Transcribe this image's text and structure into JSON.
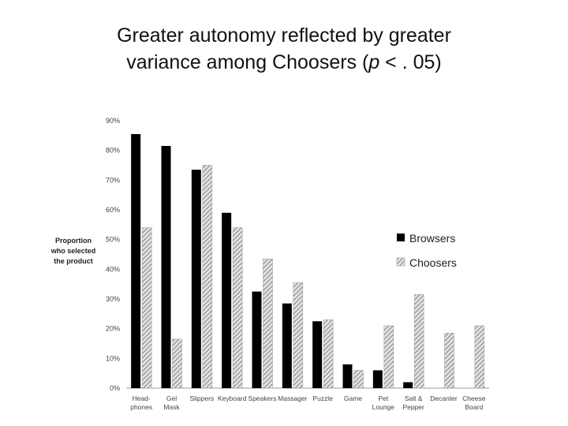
{
  "title": {
    "line1": "Greater autonomy reflected by greater",
    "line2_prefix": "variance among Choosers (",
    "line2_p": "p",
    "line2_suffix": " < . 05)"
  },
  "colors": {
    "browsers": "#000000",
    "choosers_fill": "#e2e2e2",
    "choosers_hatch": "#6a6a6a",
    "axis": "#999999",
    "text": "#444444"
  },
  "chart_data": {
    "type": "bar",
    "ylabel_lines": [
      "Proportion",
      "who selected",
      "the product"
    ],
    "xlabel": "",
    "ylim": [
      0,
      90
    ],
    "yticks": [
      "0%",
      "10%",
      "20%",
      "30%",
      "40%",
      "50%",
      "60%",
      "70%",
      "80%",
      "90%"
    ],
    "grid": false,
    "legend_position": "right",
    "categories": [
      [
        "Head-",
        "phones"
      ],
      [
        "Gel",
        "Mask"
      ],
      [
        "Slippers"
      ],
      [
        "Keyboard"
      ],
      [
        "Speakers"
      ],
      [
        "Massager"
      ],
      [
        "Puzzle"
      ],
      [
        "Game"
      ],
      [
        "Pet",
        "Lounge"
      ],
      [
        "Salt &",
        "Pepper"
      ],
      [
        "Decanter"
      ],
      [
        "Cheese",
        "Board"
      ]
    ],
    "series": [
      {
        "name": "Browsers",
        "values": [
          85.5,
          81.5,
          73.5,
          59,
          32.5,
          28.5,
          22.5,
          8,
          6,
          2,
          0,
          0
        ]
      },
      {
        "name": "Choosers",
        "values": [
          54,
          16.5,
          75,
          54,
          43.5,
          35.5,
          23,
          6,
          21,
          31.5,
          18.5,
          21
        ]
      }
    ]
  }
}
